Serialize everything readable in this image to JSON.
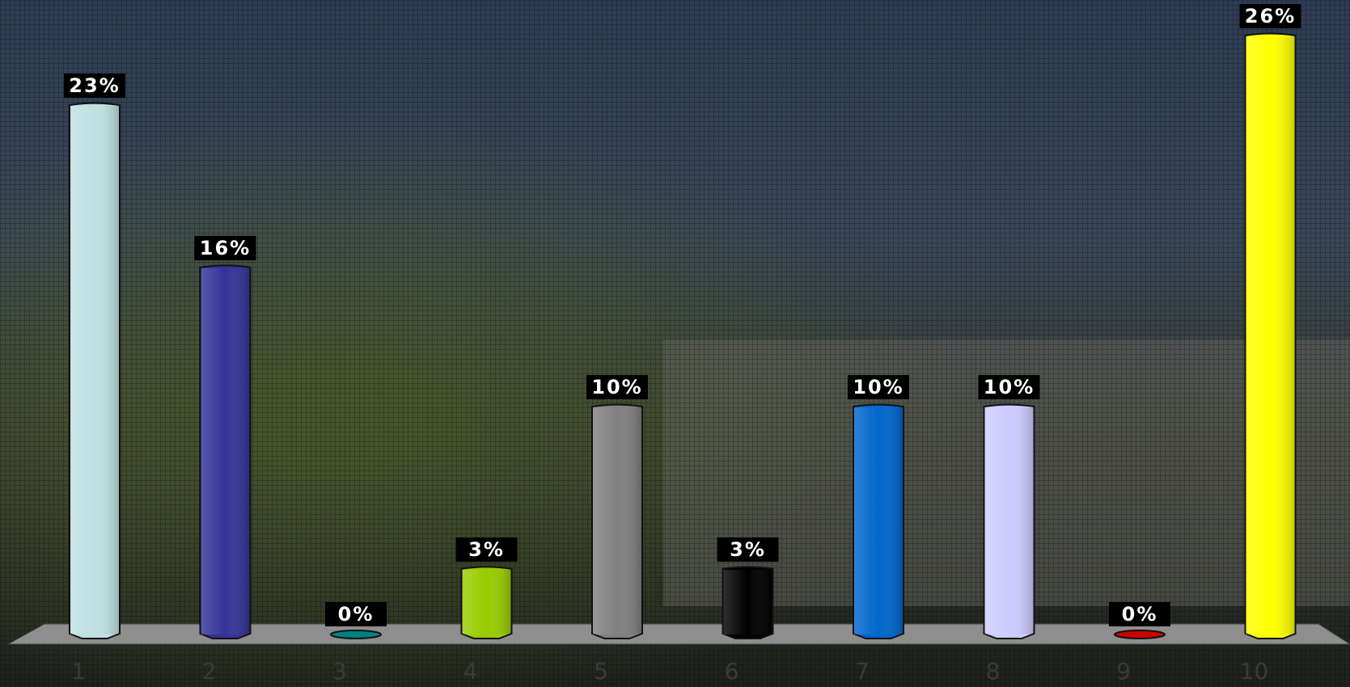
{
  "chart_data": {
    "type": "bar",
    "categories": [
      "1",
      "2",
      "3",
      "4",
      "5",
      "6",
      "7",
      "8",
      "9",
      "10"
    ],
    "values": [
      23,
      16,
      0,
      3,
      10,
      3,
      10,
      10,
      0,
      26
    ],
    "value_labels": [
      "23%",
      "16%",
      "0%",
      "3%",
      "10%",
      "3%",
      "10%",
      "10%",
      "0%",
      "26%"
    ],
    "colors": [
      "#bfe0e2",
      "#333399",
      "#008080",
      "#99cc00",
      "#808080",
      "#000000",
      "#0066cc",
      "#ccccff",
      "#cc0000",
      "#ffff00"
    ]
  }
}
